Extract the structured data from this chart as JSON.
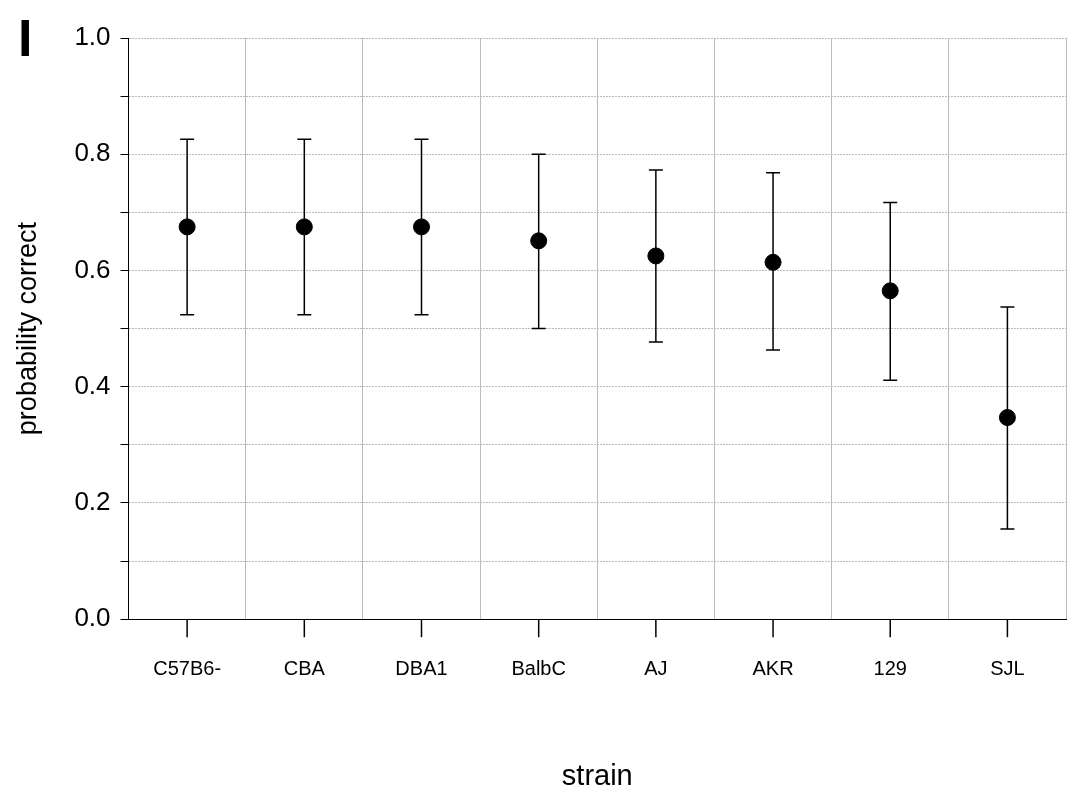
{
  "chart_data": {
    "type": "scatter",
    "xlabel": "strain",
    "ylabel": "probability correct",
    "annotations": [
      "I"
    ],
    "categories": [
      "C57B6-",
      "CBA",
      "DBA1",
      "BalbC",
      "AJ",
      "AKR",
      "129",
      "SJL"
    ],
    "values": [
      0.675,
      0.675,
      0.675,
      0.651,
      0.625,
      0.614,
      0.565,
      0.347
    ],
    "errors": [
      [
        0.524,
        0.826
      ],
      [
        0.524,
        0.826
      ],
      [
        0.524,
        0.826
      ],
      [
        0.5,
        0.8
      ],
      [
        0.477,
        0.773
      ],
      [
        0.463,
        0.768
      ],
      [
        0.411,
        0.717
      ],
      [
        0.155,
        0.537
      ]
    ],
    "color": "#000000",
    "marker": "circle",
    "ylim": [
      0,
      1
    ],
    "yticks": [
      {
        "value": 0,
        "label": "0.0"
      },
      {
        "value": 0.1,
        "label": null
      },
      {
        "value": 0.2,
        "label": "0.2"
      },
      {
        "value": 0.3,
        "label": null
      },
      {
        "value": 0.4,
        "label": "0.4"
      },
      {
        "value": 0.5,
        "label": null
      },
      {
        "value": 0.6,
        "label": "0.6"
      },
      {
        "value": 0.7,
        "label": null
      },
      {
        "value": 0.8,
        "label": "0.8"
      },
      {
        "value": 0.9,
        "label": null
      },
      {
        "value": 1,
        "label": "1.0"
      }
    ],
    "grid": true
  }
}
